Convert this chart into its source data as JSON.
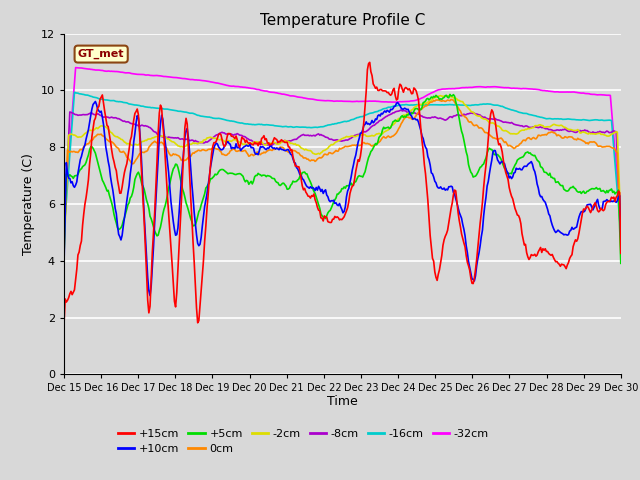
{
  "title": "Temperature Profile C",
  "xlabel": "Time",
  "ylabel": "Temperature (C)",
  "ylim": [
    0,
    12
  ],
  "yticks": [
    0,
    2,
    4,
    6,
    8,
    10,
    12
  ],
  "fig_bg_color": "#d8d8d8",
  "plot_bg_color": "#d8d8d8",
  "grid_color": "white",
  "series": [
    {
      "label": "+15cm",
      "color": "#ff0000"
    },
    {
      "label": "+10cm",
      "color": "#0000ff"
    },
    {
      "label": "+5cm",
      "color": "#00dd00"
    },
    {
      "label": "0cm",
      "color": "#ff8800"
    },
    {
      "label": "-2cm",
      "color": "#dddd00"
    },
    {
      "label": "-8cm",
      "color": "#aa00cc"
    },
    {
      "label": "-16cm",
      "color": "#00cccc"
    },
    {
      "label": "-32cm",
      "color": "#ff00ff"
    }
  ],
  "gt_met_label": "GT_met",
  "n_points": 480,
  "x_start": 15,
  "x_end": 30,
  "xtick_labels": [
    "Dec 15",
    "Dec 16",
    "Dec 17",
    "Dec 18",
    "Dec 19",
    "Dec 20",
    "Dec 21",
    "Dec 22",
    "Dec 23",
    "Dec 24",
    "Dec 25",
    "Dec 26",
    "Dec 27",
    "Dec 28",
    "Dec 29",
    "Dec 30"
  ],
  "xtick_positions": [
    15,
    16,
    17,
    18,
    19,
    20,
    21,
    22,
    23,
    24,
    25,
    26,
    27,
    28,
    29,
    30
  ]
}
